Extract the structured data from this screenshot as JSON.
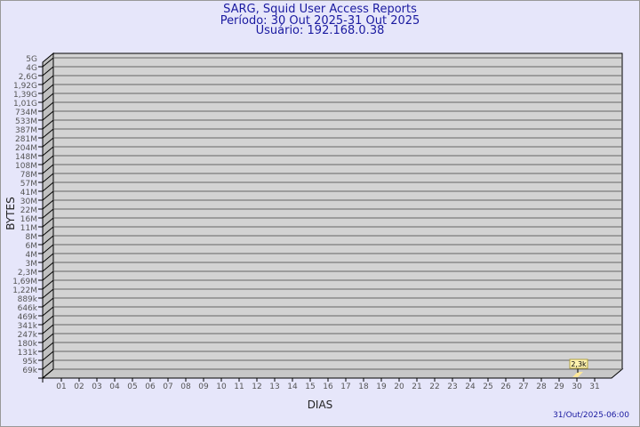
{
  "header": {
    "title": "SARG, Squid User Access Reports",
    "period": "Período: 30 Out 2025-31 Out 2025",
    "user": "Usuário: 192.168.0.38"
  },
  "footer": {
    "timestamp": "31/Out/2025-06:00"
  },
  "colors": {
    "background": "#e6e6fa",
    "plot": "#d3d3d3",
    "bar": "#ffe89a",
    "title": "#1a1aa0"
  },
  "chart_data": {
    "type": "bar",
    "xlabel": "DIAS",
    "ylabel": "BYTES",
    "y_scale": "log",
    "y_ticks": [
      "5G",
      "4G",
      "2,6G",
      "1,92G",
      "1,39G",
      "1,01G",
      "734M",
      "533M",
      "387M",
      "281M",
      "204M",
      "148M",
      "108M",
      "78M",
      "57M",
      "41M",
      "30M",
      "22M",
      "16M",
      "11M",
      "8M",
      "6M",
      "4M",
      "3M",
      "2,3M",
      "1,69M",
      "1,22M",
      "889k",
      "646k",
      "469k",
      "341k",
      "247k",
      "180k",
      "131k",
      "95k",
      "69k"
    ],
    "categories": [
      "01",
      "02",
      "03",
      "04",
      "05",
      "06",
      "07",
      "08",
      "09",
      "10",
      "11",
      "12",
      "13",
      "14",
      "15",
      "16",
      "17",
      "18",
      "19",
      "20",
      "21",
      "22",
      "23",
      "24",
      "25",
      "26",
      "27",
      "28",
      "29",
      "30",
      "31"
    ],
    "values": [
      {
        "day": "30",
        "label": "2,3k"
      }
    ],
    "grid": true
  }
}
